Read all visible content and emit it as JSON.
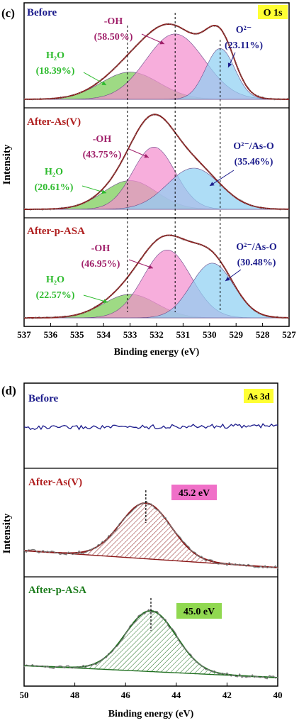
{
  "colors": {
    "envelope": "#8b1a1a",
    "raw": "#7a7a7a",
    "pink": "#f48fcf",
    "blue": "#8fd0f2",
    "green": "#78cc55",
    "purple": "#c890e0",
    "label_blue": "#1c1c8c",
    "label_red": "#b02020",
    "label_pink": "#a0206a",
    "label_green": "#2dbb2d",
    "highlight_yellow": "#ffff33",
    "highlight_pink": "#f070c8",
    "highlight_green": "#90d850"
  },
  "chart_data": [
    {
      "panel": "(c)",
      "type": "line",
      "badge": "O 1s",
      "xlabel": "Binding energy (eV)",
      "ylabel": "Intensity",
      "xlim": [
        537,
        527
      ],
      "xticks": [
        "537",
        "536",
        "535",
        "534",
        "533",
        "532",
        "531",
        "530",
        "529",
        "528",
        "527"
      ],
      "reference_lines": [
        533.1,
        531.3,
        529.6
      ],
      "series": [
        {
          "name": "Before",
          "components": [
            {
              "species": "H2O",
              "center": 533.0,
              "height": 0.3,
              "width": 1.1,
              "label": "H₂O",
              "percent": "(18.39%)"
            },
            {
              "species": "-OH",
              "center": 531.3,
              "height": 0.72,
              "width": 1.1,
              "label": "-OH",
              "percent": "(58.50%)"
            },
            {
              "species": "O2-",
              "center": 529.6,
              "height": 0.56,
              "width": 0.55,
              "label": "O²⁻",
              "percent": "(23.11%)"
            }
          ]
        },
        {
          "name": "After-As(V)",
          "components": [
            {
              "species": "H2O",
              "center": 533.0,
              "height": 0.3,
              "width": 1.0,
              "label": "H₂O",
              "percent": "(20.61%)"
            },
            {
              "species": "-OH",
              "center": 532.1,
              "height": 0.65,
              "width": 0.8,
              "label": "-OH",
              "percent": "(43.75%)"
            },
            {
              "species": "O2-/As-O",
              "center": 530.6,
              "height": 0.43,
              "width": 1.0,
              "label": "O²⁻/As-O",
              "percent": "(35.46%)"
            }
          ]
        },
        {
          "name": "After-p-ASA",
          "components": [
            {
              "species": "H2O",
              "center": 533.0,
              "height": 0.25,
              "width": 1.0,
              "label": "H₂O",
              "percent": "(22.57%)"
            },
            {
              "species": "-OH",
              "center": 531.6,
              "height": 0.72,
              "width": 0.9,
              "label": "-OH",
              "percent": "(46.95%)"
            },
            {
              "species": "O2-/As-O",
              "center": 529.9,
              "height": 0.58,
              "width": 0.8,
              "label": "O²⁻/As-O",
              "percent": "(30.48%)"
            }
          ]
        }
      ]
    },
    {
      "panel": "(d)",
      "type": "line",
      "badge": "As 3d",
      "xlabel": "Binding energy (eV)",
      "ylabel": "Intensity",
      "xlim": [
        50,
        40
      ],
      "xticks": [
        "50",
        "48",
        "46",
        "44",
        "42",
        "40"
      ],
      "series": [
        {
          "name": "Before",
          "peak": null,
          "peak_label": ""
        },
        {
          "name": "After-As(V)",
          "peak": 45.2,
          "height": 0.72,
          "width": 1.0,
          "peak_label": "45.2 eV"
        },
        {
          "name": "After-p-ASA",
          "peak": 45.0,
          "height": 0.78,
          "width": 1.0,
          "peak_label": "45.0 eV"
        }
      ]
    }
  ]
}
